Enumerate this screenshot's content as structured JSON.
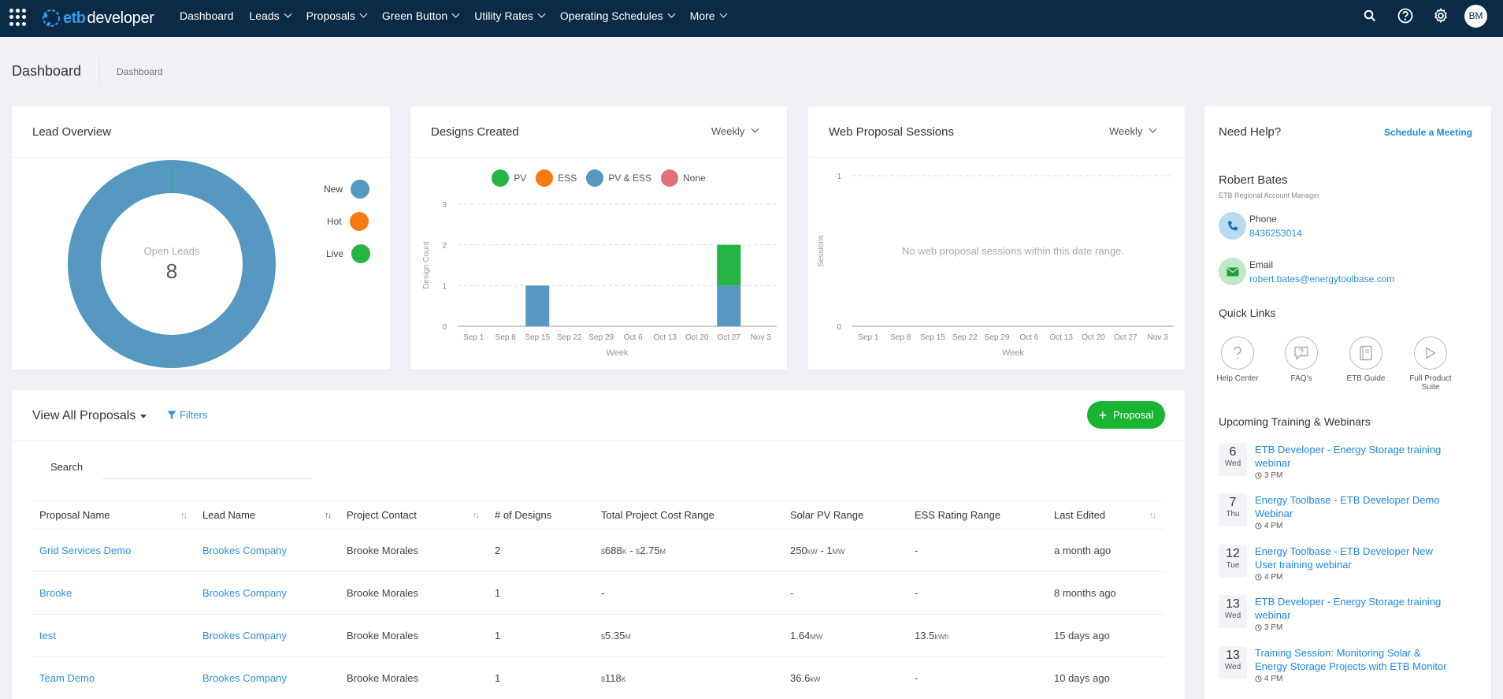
{
  "nav": {
    "logo_etb": "etb",
    "logo_dev": "developer",
    "items": [
      "Dashboard",
      "Leads",
      "Proposals",
      "Green Button",
      "Utility Rates",
      "Operating Schedules",
      "More"
    ],
    "avatar": "BM"
  },
  "header": {
    "title": "Dashboard",
    "breadcrumb": "Dashboard"
  },
  "lead_overview": {
    "title": "Lead Overview",
    "center_label": "Open Leads",
    "center_value": "8",
    "legend": [
      {
        "label": "New",
        "color": "#5698c0"
      },
      {
        "label": "Hot",
        "color": "#fb7a10"
      },
      {
        "label": "Live",
        "color": "#24b544"
      }
    ]
  },
  "designs": {
    "title": "Designs Created",
    "period": "Weekly",
    "legend": [
      {
        "label": "PV",
        "color": "#24b544"
      },
      {
        "label": "ESS",
        "color": "#fb7a10"
      },
      {
        "label": "PV & ESS",
        "color": "#5698c0"
      },
      {
        "label": "None",
        "color": "#e07176"
      }
    ]
  },
  "web_sessions": {
    "title": "Web Proposal Sessions",
    "period": "Weekly",
    "empty_text": "No web proposal sessions within this date range."
  },
  "chart_data": [
    {
      "type": "bar",
      "title": "Designs Created",
      "xlabel": "Week",
      "ylabel": "Design Count",
      "ylim": [
        0,
        3
      ],
      "yticks": [
        "0",
        "1",
        "2",
        "3"
      ],
      "categories": [
        "Sep 1",
        "Sep 8",
        "Sep 15",
        "Sep 22",
        "Sep 29",
        "Oct 6",
        "Oct 13",
        "Oct 20",
        "Oct 27",
        "Nov 3"
      ],
      "stacked": true,
      "series": [
        {
          "name": "PV & ESS",
          "color": "#5698c0",
          "values": [
            0,
            0,
            1,
            0,
            0,
            0,
            0,
            0,
            1,
            0
          ]
        },
        {
          "name": "PV",
          "color": "#24b544",
          "values": [
            0,
            0,
            0,
            0,
            0,
            0,
            0,
            0,
            1,
            0
          ]
        }
      ],
      "grid": true
    },
    {
      "type": "line",
      "title": "Web Proposal Sessions",
      "xlabel": "Week",
      "ylabel": "Sessions",
      "ylim": [
        0,
        1
      ],
      "yticks": [
        "0",
        "1"
      ],
      "categories": [
        "Sep 1",
        "Sep 8",
        "Sep 15",
        "Sep 22",
        "Sep 29",
        "Oct 6",
        "Oct 13",
        "Oct 20",
        "Oct 27",
        "Nov 3"
      ],
      "series": [],
      "grid": true
    }
  ],
  "proposals": {
    "view_label": "View All Proposals",
    "filters_label": "Filters",
    "add_label": "Proposal",
    "search_label": "Search",
    "columns": [
      "Proposal Name",
      "Lead Name",
      "Project Contact",
      "# of Designs",
      "Total Project Cost Range",
      "Solar PV Range",
      "ESS Rating Range",
      "Last Edited"
    ],
    "rows": [
      {
        "name": "Grid Services Demo",
        "lead": "Brookes Company",
        "contact": "Brooke Morales",
        "designs": "2",
        "cost_cur1": "$",
        "cost_val1": "688",
        "cost_unit1": "K",
        "cost_dash": " - ",
        "cost_cur2": "$",
        "cost_val2": "2.75",
        "cost_unit2": "M",
        "pv_val1": "250",
        "pv_unit1": "kW",
        "pv_dash": " - ",
        "pv_val2": "1",
        "pv_unit2": "MW",
        "ess_val": "-",
        "ess_unit": "",
        "edited": "a month ago"
      },
      {
        "name": "Brooke",
        "lead": "Brookes Company",
        "contact": "Brooke Morales",
        "designs": "1",
        "cost_cur1": "",
        "cost_val1": "-",
        "cost_unit1": "",
        "cost_dash": "",
        "cost_cur2": "",
        "cost_val2": "",
        "cost_unit2": "",
        "pv_val1": "-",
        "pv_unit1": "",
        "pv_dash": "",
        "pv_val2": "",
        "pv_unit2": "",
        "ess_val": "-",
        "ess_unit": "",
        "edited": "8 months ago"
      },
      {
        "name": "test",
        "lead": "Brookes Company",
        "contact": "Brooke Morales",
        "designs": "1",
        "cost_cur1": "$",
        "cost_val1": "5.35",
        "cost_unit1": "M",
        "cost_dash": "",
        "cost_cur2": "",
        "cost_val2": "",
        "cost_unit2": "",
        "pv_val1": "1.64",
        "pv_unit1": "MW",
        "pv_dash": "",
        "pv_val2": "",
        "pv_unit2": "",
        "ess_val": "13.5",
        "ess_unit": "kWh",
        "edited": "15 days ago"
      },
      {
        "name": "Team Demo",
        "lead": "Brookes Company",
        "contact": "Brooke Morales",
        "designs": "1",
        "cost_cur1": "$",
        "cost_val1": "118",
        "cost_unit1": "K",
        "cost_dash": "",
        "cost_cur2": "",
        "cost_val2": "",
        "cost_unit2": "",
        "pv_val1": "36.6",
        "pv_unit1": "kW",
        "pv_dash": "",
        "pv_val2": "",
        "pv_unit2": "",
        "ess_val": "-",
        "ess_unit": "",
        "edited": "10 days ago"
      }
    ]
  },
  "help": {
    "title": "Need Help?",
    "schedule_label": "Schedule a Meeting",
    "rep_name": "Robert Bates",
    "rep_role": "ETB Regional Account Manager",
    "phone_label": "Phone",
    "phone": "8436253014",
    "email_label": "Email",
    "email": "robert.bates@energytoolbase.com",
    "quick_links_title": "Quick Links",
    "quick_links": [
      {
        "label": "Help Center",
        "icon": "question-icon"
      },
      {
        "label": "FAQ's",
        "icon": "chat-question-icon"
      },
      {
        "label": "ETB Guide",
        "icon": "book-icon"
      },
      {
        "label": "Full Product Suite",
        "icon": "play-icon"
      }
    ],
    "training_title": "Upcoming Training & Webinars",
    "events": [
      {
        "day": "6",
        "weekday": "Wed",
        "title": "ETB Developer - Energy Storage training webinar",
        "time": "3 PM"
      },
      {
        "day": "7",
        "weekday": "Thu",
        "title": "Energy Toolbase - ETB Developer Demo Webinar",
        "time": "4 PM"
      },
      {
        "day": "12",
        "weekday": "Tue",
        "title": "Energy Toolbase - ETB Developer New User training webinar",
        "time": "4 PM"
      },
      {
        "day": "13",
        "weekday": "Wed",
        "title": "ETB Developer - Energy Storage training webinar",
        "time": "3 PM"
      },
      {
        "day": "13",
        "weekday": "Wed",
        "title": "Training Session: Monitoring Solar & Energy Storage Projects with ETB Monitor",
        "time": "4 PM"
      }
    ]
  }
}
